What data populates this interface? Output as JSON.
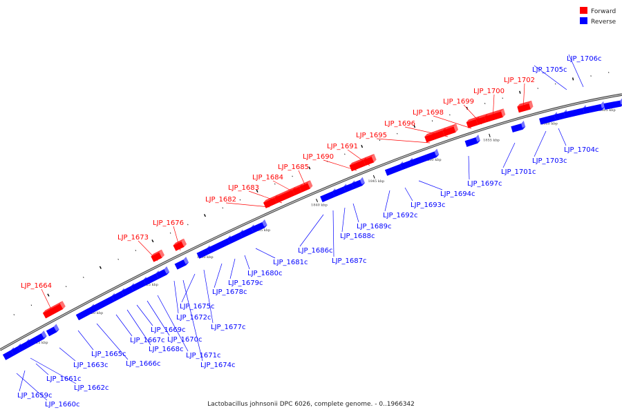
{
  "caption": "Lactobacillus johnsonii DPC 6026, complete genome. - 0..1966342",
  "legend": [
    {
      "label": "Forward",
      "color": "#ff0000"
    },
    {
      "label": "Reverse",
      "color": "#0000ff"
    }
  ],
  "colors": {
    "forward": "#ff0000",
    "reverse": "#0000ff",
    "backbone": "#808080",
    "leader": "#0000ff",
    "leader_fwd": "#ff0000"
  },
  "ticks": [
    "1815 kbp",
    "1820 kbp",
    "1825 kbp",
    "1830 kbp",
    "1835 kbp",
    "1840 kbp",
    "1845 kbp",
    "1850 kbp",
    "1855 kbp",
    "1860 kbp",
    "1865 kbp"
  ],
  "forward_labels": [
    "LJP_1664",
    "LJP_1673",
    "LJP_1676",
    "LJP_1682",
    "LJP_1683",
    "LJP_1684",
    "LJP_1685",
    "LJP_1690",
    "LJP_1691",
    "LJP_1695",
    "LJP_1696",
    "LJP_1698",
    "LJP_1699",
    "LJP_1700",
    "LJP_1702"
  ],
  "reverse_labels": [
    "LJP_1659c",
    "LJP_1660c",
    "LJP_1661c",
    "LJP_1662c",
    "LJP_1663c",
    "LJP_1665c",
    "LJP_1666c",
    "LJP_1667c",
    "LJP_1668c",
    "LJP_1669c",
    "LJP_1670c",
    "LJP_1671c",
    "LJP_1672c",
    "LJP_1674c",
    "LJP_1675c",
    "LJP_1677c",
    "LJP_1678c",
    "LJP_1679c",
    "LJP_1680c",
    "LJP_1681c",
    "LJP_1686c",
    "LJP_1687c",
    "LJP_1688c",
    "LJP_1689c",
    "LJP_1692c",
    "LJP_1693c",
    "LJP_1694c",
    "LJP_1697c",
    "LJP_1701c",
    "LJP_1703c",
    "LJP_1704c",
    "LJP_1705c",
    "LJP_1706c"
  ]
}
